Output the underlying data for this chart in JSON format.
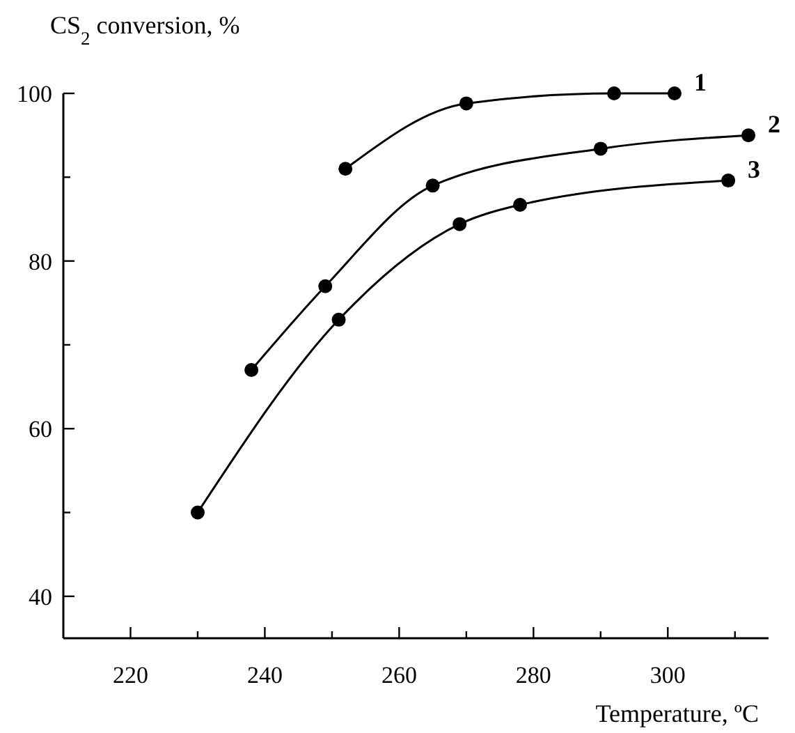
{
  "chart_data": {
    "type": "line",
    "xlabel": "Temperature, ºC",
    "ylabel": "CS$_{2}$ conversion, %",
    "xlim": [
      210,
      315
    ],
    "ylim": [
      35,
      100
    ],
    "xticks": [
      220,
      {
        "value": 230,
        "label": null
      },
      240,
      {
        "value": 250,
        "label": null
      },
      260,
      {
        "value": 270,
        "label": null
      },
      280,
      {
        "value": 290,
        "label": null
      },
      300,
      {
        "value": 310,
        "label": null
      }
    ],
    "yticks": [
      40,
      {
        "value": 50,
        "label": null
      },
      60,
      {
        "value": 70,
        "label": null
      },
      80,
      {
        "value": 90,
        "label": null
      },
      100
    ],
    "grid": false,
    "legend": false,
    "marker": "circle",
    "line_style": "solid",
    "series": [
      {
        "name": "1",
        "color": "#000000",
        "x": [
          252,
          270,
          292,
          301
        ],
        "values": [
          91,
          98.8,
          100,
          100
        ]
      },
      {
        "name": "2",
        "color": "#000000",
        "x": [
          238,
          249,
          265,
          290,
          312
        ],
        "values": [
          67,
          77,
          89,
          93.4,
          95
        ]
      },
      {
        "name": "3",
        "color": "#000000",
        "x": [
          230,
          251,
          269,
          278,
          309
        ],
        "values": [
          50,
          73,
          84.4,
          86.7,
          89.6
        ]
      }
    ]
  }
}
